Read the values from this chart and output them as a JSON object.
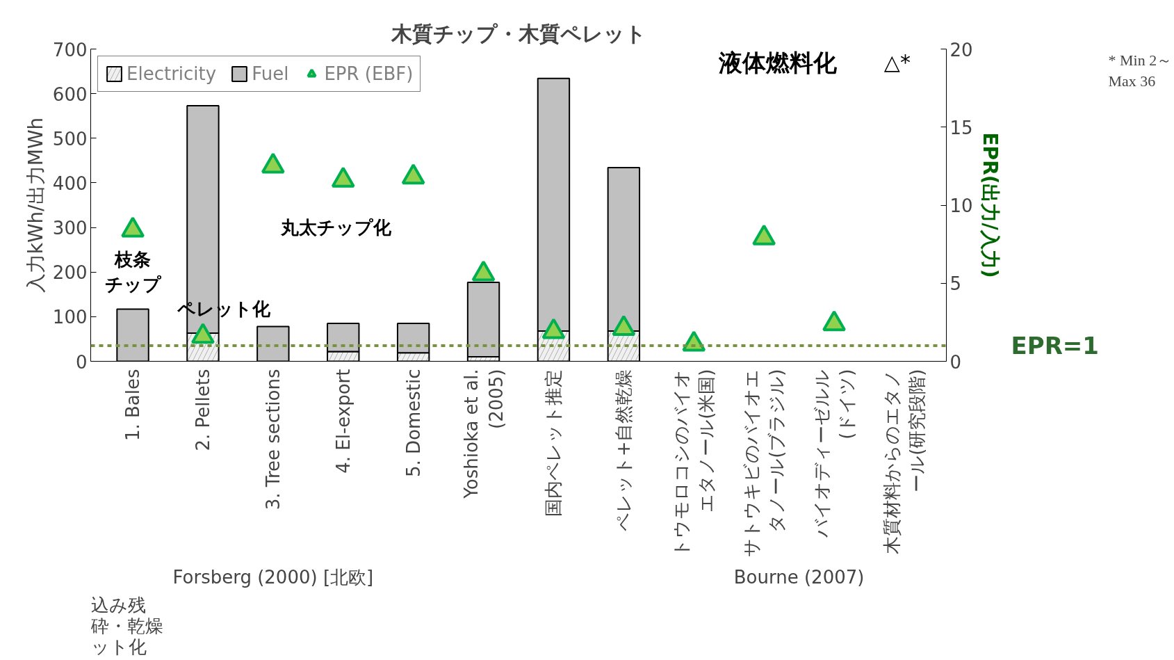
{
  "chart_data": {
    "type": "bar",
    "title": "木質チップ・木質ペレット",
    "ylabel": "入力kWh/出力MWh",
    "y2label": "EPR(出力/入力)",
    "categories": [
      "1. Bales",
      "2. Pellets",
      "3. Tree sections",
      "4. El-export",
      "5. Domestic",
      "Yoshioka et al.\n(2005)",
      "国内ペレット推定",
      "ペレット+自然乾燥",
      "トウモロコシのバイオエタノール(米国)",
      "サトウキビのバイオエタノール(ブラジル)",
      "バイオディーゼルル(ドイツ)",
      "木質材料からのエタノール(研究段階)"
    ],
    "stacked": true,
    "series": [
      {
        "name": "Electricity",
        "color": "#f0f0f0",
        "values": [
          null,
          63,
          null,
          22,
          19,
          10,
          68,
          68,
          null,
          null,
          null,
          null
        ]
      },
      {
        "name": "Fuel",
        "color": "#c0c0c0",
        "values": [
          117,
          510,
          78,
          63,
          66,
          167,
          566,
          366,
          null,
          null,
          null,
          null
        ]
      },
      {
        "name": "EPR (EBF)",
        "type": "scatter",
        "axis": "y2",
        "marker": "triangle",
        "color": "#92d050",
        "values": [
          8.4,
          1.6,
          12.5,
          11.6,
          11.8,
          5.6,
          1.9,
          2.1,
          1.1,
          7.9,
          2.4,
          null
        ]
      }
    ],
    "ylim": [
      0,
      700
    ],
    "yticks": [
      0,
      100,
      200,
      300,
      400,
      500,
      600,
      700
    ],
    "y2lim": [
      0,
      20
    ],
    "y2ticks": [
      0,
      5,
      10,
      15,
      20
    ],
    "ref_lines": [
      {
        "axis": "y2",
        "value": 1,
        "label": "EPR=1",
        "color": "#77933c",
        "line_style": "dashed"
      }
    ],
    "legend": "top left",
    "grid": false,
    "annotations": [
      "枝条チップ",
      "ペレット化",
      "丸太チップ化",
      "液体燃料化",
      "△*",
      "* Min 2～ Max 36",
      "Forsberg (2000) [北欧]",
      "Bourne (2007)",
      "込み残砕・乾燥ット化"
    ]
  }
}
